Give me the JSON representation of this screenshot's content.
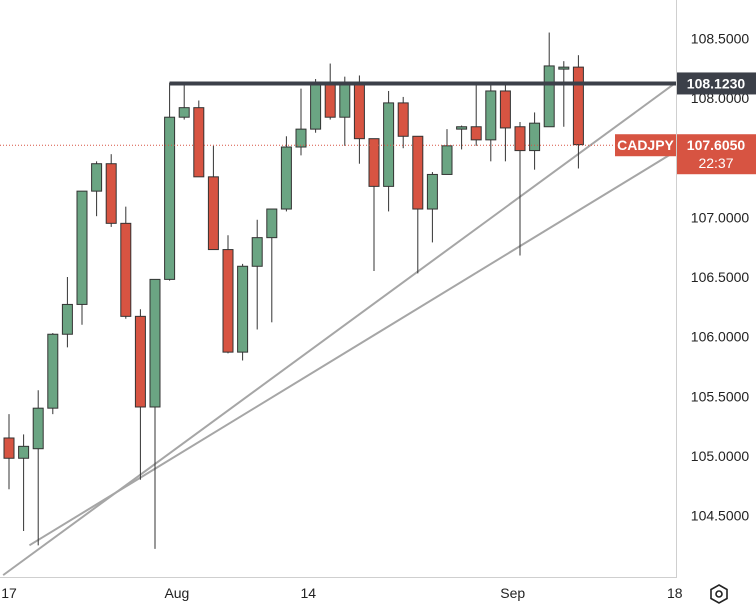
{
  "chart_data": {
    "type": "candlestick",
    "symbol": "CADJPY",
    "ylim": [
      104.0,
      108.8
    ],
    "y_ticks": [
      "108.5000",
      "108.0000",
      "107.0000",
      "106.5000",
      "106.0000",
      "105.5000",
      "105.0000",
      "104.5000"
    ],
    "x_ticks": [
      {
        "label": "17",
        "index": 0.0
      },
      {
        "label": "Aug",
        "index": 11.5
      },
      {
        "label": "14",
        "index": 20.5
      },
      {
        "label": "Sep",
        "index": 34.5
      },
      {
        "label": "18",
        "index": 45.6
      }
    ],
    "candles": [
      {
        "o": 105.15,
        "h": 105.35,
        "l": 104.72,
        "c": 104.98
      },
      {
        "o": 104.98,
        "h": 105.18,
        "l": 104.37,
        "c": 105.08
      },
      {
        "o": 105.06,
        "h": 105.55,
        "l": 104.25,
        "c": 105.4
      },
      {
        "o": 105.4,
        "h": 106.03,
        "l": 105.35,
        "c": 106.02
      },
      {
        "o": 106.02,
        "h": 106.5,
        "l": 105.91,
        "c": 106.27
      },
      {
        "o": 106.27,
        "h": 107.22,
        "l": 106.1,
        "c": 107.22
      },
      {
        "o": 107.22,
        "h": 107.47,
        "l": 107.01,
        "c": 107.45
      },
      {
        "o": 107.45,
        "h": 107.53,
        "l": 106.92,
        "c": 106.95
      },
      {
        "o": 106.95,
        "h": 107.09,
        "l": 106.15,
        "c": 106.17
      },
      {
        "o": 106.17,
        "h": 106.23,
        "l": 104.8,
        "c": 105.41
      },
      {
        "o": 105.41,
        "h": 106.48,
        "l": 104.22,
        "c": 106.48
      },
      {
        "o": 106.48,
        "h": 108.13,
        "l": 106.47,
        "c": 107.84
      },
      {
        "o": 107.84,
        "h": 108.12,
        "l": 107.82,
        "c": 107.92
      },
      {
        "o": 107.92,
        "h": 107.98,
        "l": 107.37,
        "c": 107.34
      },
      {
        "o": 107.34,
        "h": 107.6,
        "l": 106.74,
        "c": 106.73
      },
      {
        "o": 106.73,
        "h": 106.85,
        "l": 105.86,
        "c": 105.87
      },
      {
        "o": 105.87,
        "h": 106.61,
        "l": 105.8,
        "c": 106.59
      },
      {
        "o": 106.59,
        "h": 106.98,
        "l": 106.06,
        "c": 106.83
      },
      {
        "o": 106.83,
        "h": 107.07,
        "l": 106.12,
        "c": 107.07
      },
      {
        "o": 107.07,
        "h": 107.68,
        "l": 107.05,
        "c": 107.59
      },
      {
        "o": 107.59,
        "h": 108.08,
        "l": 107.52,
        "c": 107.74
      },
      {
        "o": 107.74,
        "h": 108.16,
        "l": 107.71,
        "c": 108.12
      },
      {
        "o": 108.12,
        "h": 108.29,
        "l": 107.82,
        "c": 107.84
      },
      {
        "o": 107.84,
        "h": 108.18,
        "l": 107.6,
        "c": 108.12
      },
      {
        "o": 108.12,
        "h": 108.19,
        "l": 107.45,
        "c": 107.66
      },
      {
        "o": 107.66,
        "h": 107.66,
        "l": 106.55,
        "c": 107.26
      },
      {
        "o": 107.26,
        "h": 108.06,
        "l": 107.05,
        "c": 107.96
      },
      {
        "o": 107.96,
        "h": 108.01,
        "l": 107.58,
        "c": 107.68
      },
      {
        "o": 107.68,
        "h": 107.68,
        "l": 106.53,
        "c": 107.07
      },
      {
        "o": 107.07,
        "h": 107.38,
        "l": 106.79,
        "c": 107.36
      },
      {
        "o": 107.36,
        "h": 107.74,
        "l": 107.37,
        "c": 107.6
      },
      {
        "o": 107.74,
        "h": 107.77,
        "l": 107.57,
        "c": 107.76
      },
      {
        "o": 107.76,
        "h": 108.12,
        "l": 107.6,
        "c": 107.65
      },
      {
        "o": 107.65,
        "h": 108.11,
        "l": 107.47,
        "c": 108.06
      },
      {
        "o": 108.06,
        "h": 108.12,
        "l": 107.47,
        "c": 107.75
      },
      {
        "o": 107.76,
        "h": 107.8,
        "l": 106.68,
        "c": 107.56
      },
      {
        "o": 107.56,
        "h": 107.88,
        "l": 107.4,
        "c": 107.79
      },
      {
        "o": 107.76,
        "h": 108.55,
        "l": 107.8,
        "c": 108.27
      },
      {
        "o": 108.25,
        "h": 108.31,
        "l": 107.76,
        "c": 108.26
      },
      {
        "o": 108.26,
        "h": 108.36,
        "l": 107.41,
        "c": 107.61
      }
    ],
    "resistance": {
      "value": 108.123,
      "from_index": 11.0
    },
    "trendlines": [
      {
        "from": {
          "index": -0.4,
          "value": 104.0
        },
        "to": {
          "index": 45.6,
          "value": 108.123
        }
      },
      {
        "from": {
          "index": 1.4,
          "value": 104.25
        },
        "to": {
          "index": 45.6,
          "value": 107.55
        }
      }
    ],
    "last_price": {
      "value": 107.605,
      "label": "107.6050",
      "countdown": "22:37"
    },
    "resistance_label": "108.1230",
    "colors": {
      "up": "#6ba583",
      "down": "#d75442",
      "border": "#333333",
      "trendline": "#a6a6a6",
      "resistance_line": "#3c4049",
      "last_price_line": "#d75442",
      "price_tag_bg": "#d75442",
      "resistance_tag_bg": "#3c4049",
      "axis_text": "#222222"
    },
    "grid": false
  },
  "axis_icons": {
    "settings": "settings-hexagon-icon"
  }
}
